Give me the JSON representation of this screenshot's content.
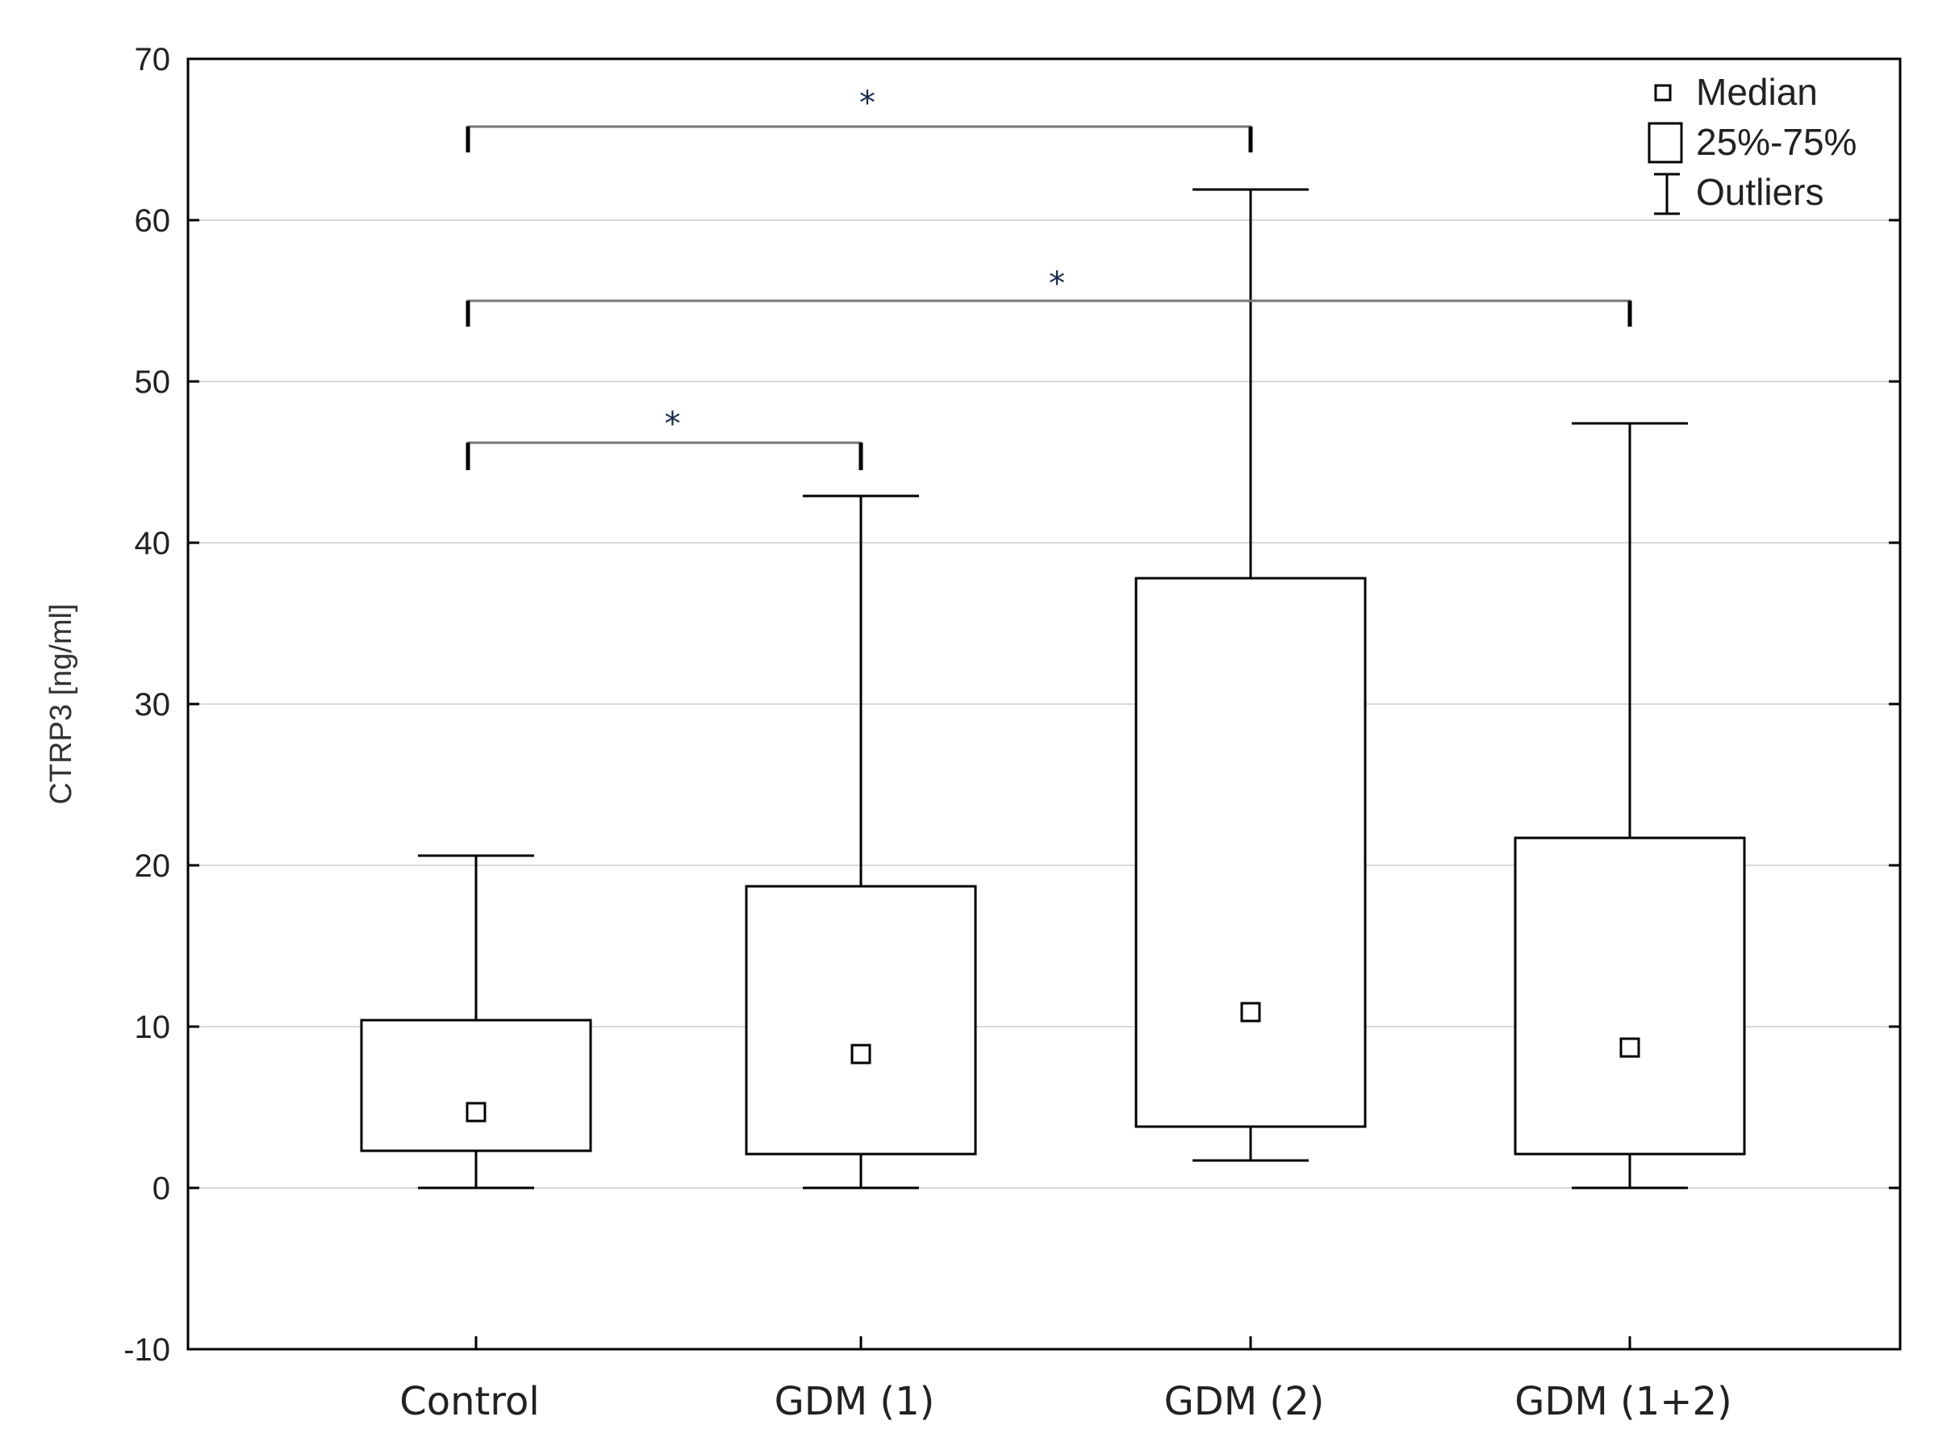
{
  "chart_data": {
    "type": "box",
    "title": "",
    "xlabel": "",
    "ylabel": "CTRP3 [ng/ml]",
    "ylim": [
      -10,
      70
    ],
    "yticks": [
      -10,
      0,
      10,
      20,
      30,
      40,
      50,
      60,
      70
    ],
    "ytick_labels": [
      "-10",
      "0",
      "10",
      "20",
      "30",
      "40",
      "50",
      "60",
      "70"
    ],
    "grid": true,
    "categories": [
      "Control",
      "GDM (1)",
      "GDM (2)",
      "GDM (1+2)"
    ],
    "boxes": [
      {
        "category": "Control",
        "min": 0.0,
        "q1": 2.3,
        "median": 4.7,
        "q3": 10.4,
        "max": 20.6
      },
      {
        "category": "GDM (1)",
        "min": 0.0,
        "q1": 2.1,
        "median": 8.3,
        "q3": 18.7,
        "max": 42.9
      },
      {
        "category": "GDM (2)",
        "min": 1.7,
        "q1": 3.8,
        "median": 10.9,
        "q3": 37.8,
        "max": 61.9
      },
      {
        "category": "GDM (1+2)",
        "min": 0.0,
        "q1": 2.1,
        "median": 8.7,
        "q3": 21.7,
        "max": 47.4
      }
    ],
    "legend": {
      "placement": "top-right",
      "entries": [
        {
          "symbol": "small-square",
          "label": "Median"
        },
        {
          "symbol": "box",
          "label": "25%-75%"
        },
        {
          "symbol": "whisker",
          "label": "Outliers"
        }
      ]
    },
    "significance_brackets": [
      {
        "from": "Control",
        "to": "GDM (2)",
        "y": 65.8,
        "drop_to": 64.2,
        "label": "*",
        "label_y": 67.7
      },
      {
        "from": "Control",
        "to": "GDM (1+2)",
        "y": 55.0,
        "drop_to": 53.4,
        "label": "*",
        "label_y": 56.5
      },
      {
        "from": "Control",
        "to": "GDM (1)",
        "y": 46.2,
        "drop_to": 44.5,
        "label": "*",
        "label_y": 47.8
      }
    ],
    "colors": {
      "lines": "#000000",
      "grid": "#d9d9d9",
      "star": "#1a2a4a"
    }
  }
}
